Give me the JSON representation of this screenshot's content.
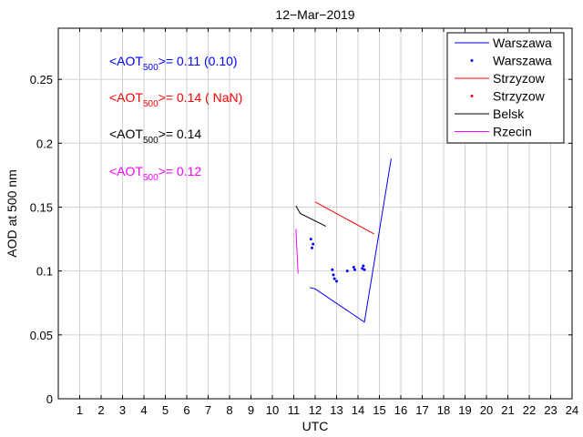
{
  "chart_data": {
    "type": "line",
    "title": "12−Mar−2019",
    "xlabel": "UTC",
    "ylabel": "AOD at 500 nm",
    "xlim": [
      0,
      24
    ],
    "ylim": [
      0,
      0.29
    ],
    "x_ticks": [
      1,
      2,
      3,
      4,
      5,
      6,
      7,
      8,
      9,
      10,
      11,
      12,
      13,
      14,
      15,
      16,
      17,
      18,
      19,
      20,
      21,
      22,
      23,
      24
    ],
    "y_ticks": [
      0,
      0.05,
      0.1,
      0.15,
      0.2,
      0.25
    ],
    "y_tick_labels": [
      "0",
      "0.05",
      "0.1",
      "0.15",
      "0.2",
      "0.25"
    ],
    "grid": true,
    "legend_position": "top-right",
    "series": [
      {
        "name": "Warszawa",
        "kind": "line",
        "color": "#0000ff",
        "x": [
          11.75,
          12.0,
          14.3,
          15.55
        ],
        "y": [
          0.087,
          0.086,
          0.06,
          0.188
        ]
      },
      {
        "name": "Warszawa",
        "kind": "points",
        "color": "#0000ff",
        "x": [
          11.8,
          11.85,
          11.9,
          12.8,
          12.85,
          12.9,
          13.0,
          13.5,
          13.8,
          13.85,
          14.2,
          14.25,
          14.3
        ],
        "y": [
          0.125,
          0.118,
          0.121,
          0.101,
          0.097,
          0.094,
          0.092,
          0.1,
          0.103,
          0.101,
          0.102,
          0.104,
          0.101
        ]
      },
      {
        "name": "Strzyzow",
        "kind": "line",
        "color": "#ff0000",
        "x": [
          12.0,
          14.75
        ],
        "y": [
          0.154,
          0.129
        ]
      },
      {
        "name": "Strzyzow",
        "kind": "points",
        "color": "#ff0000",
        "x": [],
        "y": []
      },
      {
        "name": "Belsk",
        "kind": "line",
        "color": "#000000",
        "x": [
          11.1,
          11.3,
          12.5
        ],
        "y": [
          0.151,
          0.145,
          0.135
        ]
      },
      {
        "name": "Rzecin",
        "kind": "line",
        "color": "#ff00ff",
        "x": [
          11.1,
          11.2
        ],
        "y": [
          0.133,
          0.098
        ]
      }
    ],
    "annotations": [
      {
        "pre": "<AOT",
        "sub": "500",
        "post": ">= 0.11 (0.10)",
        "color": "#0000ff"
      },
      {
        "pre": "<AOT",
        "sub": "500",
        "post": ">= 0.14 ( NaN)",
        "color": "#ff0000"
      },
      {
        "pre": "<AOT",
        "sub": "500",
        "post": ">= 0.14",
        "color": "#000000"
      },
      {
        "pre": "<AOT",
        "sub": "500",
        "post": ">= 0.12",
        "color": "#ff00ff"
      }
    ]
  }
}
